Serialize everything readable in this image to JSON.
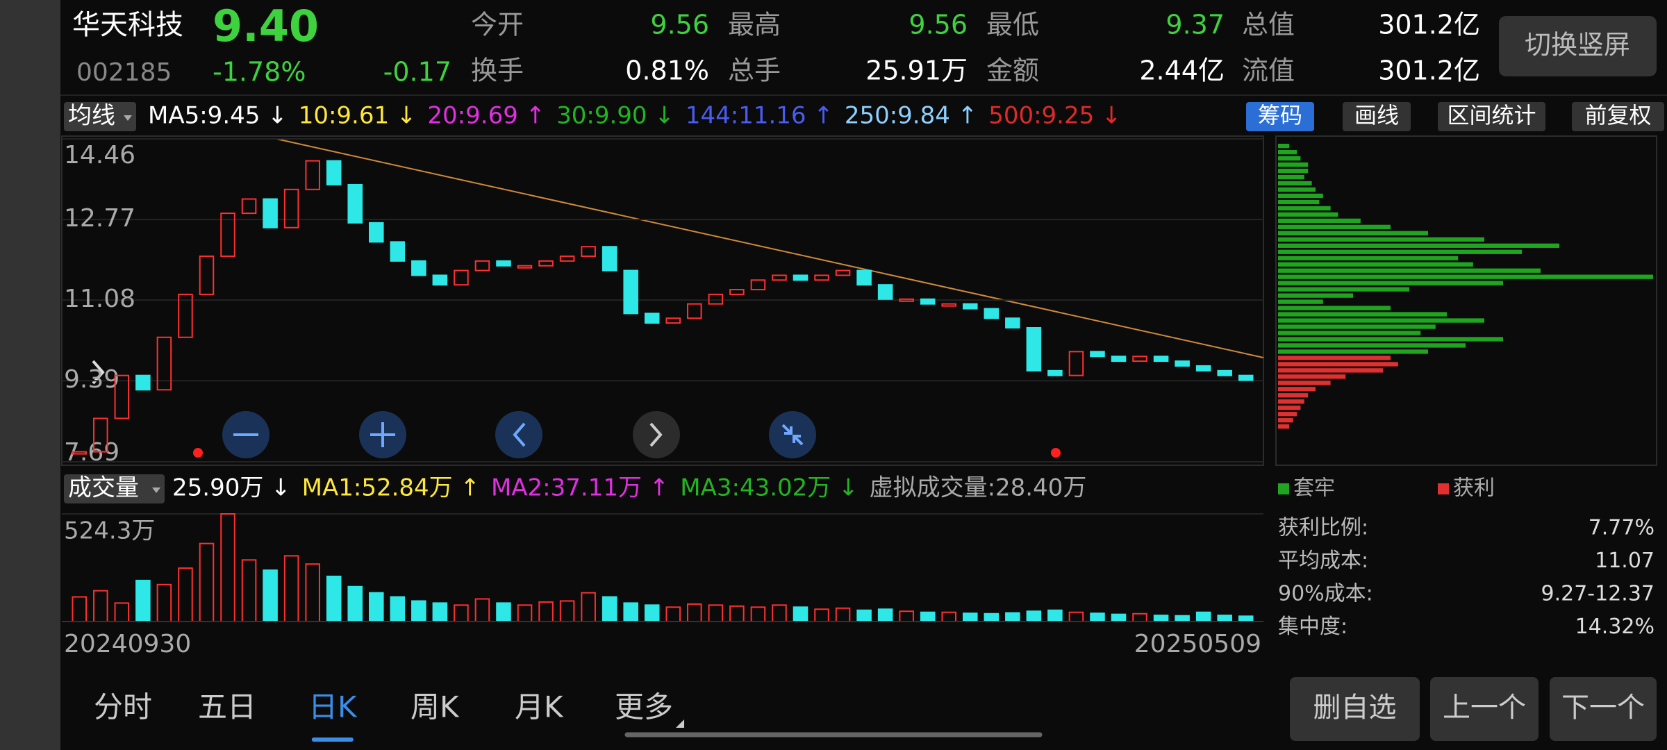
{
  "header": {
    "name": "华天科技",
    "price": "9.40",
    "code": "002185",
    "change_pct": "-1.78%",
    "change": "-0.17",
    "stats": [
      {
        "label": "今开",
        "value": "9.56",
        "color": "#3fd23f"
      },
      {
        "label": "最高",
        "value": "9.56",
        "color": "#3fd23f"
      },
      {
        "label": "最低",
        "value": "9.37",
        "color": "#3fd23f"
      },
      {
        "label": "总值",
        "value": "301.2亿",
        "color": "#ffffff"
      },
      {
        "label": "换手",
        "value": "0.81%",
        "color": "#ffffff"
      },
      {
        "label": "总手",
        "value": "25.91万",
        "color": "#ffffff"
      },
      {
        "label": "金额",
        "value": "2.44亿",
        "color": "#ffffff"
      },
      {
        "label": "流值",
        "value": "301.2亿",
        "color": "#ffffff"
      }
    ],
    "toggle_button": "切换竖屏"
  },
  "ma_bar": {
    "selector": "均线",
    "items": [
      {
        "text": "MA5:9.45 ↓",
        "color": "#ffffff"
      },
      {
        "text": "10:9.61 ↓",
        "color": "#ffe83a"
      },
      {
        "text": "20:9.69 ↑",
        "color": "#e030e0"
      },
      {
        "text": "30:9.90 ↓",
        "color": "#22b522"
      },
      {
        "text": "144:11.16 ↑",
        "color": "#4a5cf0"
      },
      {
        "text": "250:9.84 ↑",
        "color": "#8fd0ff"
      },
      {
        "text": "500:9.25 ↓",
        "color": "#e02a2a"
      }
    ]
  },
  "tools": [
    "筹码",
    "画线",
    "区间统计",
    "前复权"
  ],
  "price_chart": {
    "ylim": [
      7.69,
      14.46
    ],
    "yticks": [
      14.46,
      12.77,
      11.08,
      9.39,
      7.69
    ],
    "up_color": "#ff3030",
    "down_color": "#2ee8e8",
    "close": [
      7.9,
      8.6,
      9.5,
      9.2,
      10.3,
      11.2,
      12.0,
      12.9,
      13.2,
      12.6,
      13.4,
      14.0,
      13.5,
      12.7,
      12.3,
      11.9,
      11.6,
      11.4,
      11.7,
      11.9,
      11.8,
      11.8,
      11.9,
      12.0,
      12.2,
      11.7,
      10.8,
      10.6,
      10.7,
      11.0,
      11.2,
      11.3,
      11.5,
      11.6,
      11.5,
      11.6,
      11.7,
      11.4,
      11.1,
      11.1,
      11.0,
      11.0,
      10.9,
      10.7,
      10.5,
      9.6,
      9.5,
      10.0,
      9.9,
      9.8,
      9.9,
      9.8,
      9.7,
      9.6,
      9.5,
      9.4
    ]
  },
  "volume_bar": {
    "selector": "成交量",
    "items": [
      {
        "text": "25.90万 ↓",
        "color": "#ffffff"
      },
      {
        "text": "MA1:52.84万 ↑",
        "color": "#ffe83a"
      },
      {
        "text": "MA2:37.11万 ↑",
        "color": "#e030e0"
      },
      {
        "text": "MA3:43.02万 ↓",
        "color": "#22b522"
      },
      {
        "text": "虚拟成交量:28.40万",
        "color": "#aaaaaa"
      }
    ]
  },
  "volume_chart": {
    "ylim": [
      0,
      524.3
    ],
    "yticks": [
      {
        "value": 524.3,
        "label": "524.3万"
      }
    ],
    "values": [
      120,
      150,
      90,
      200,
      180,
      260,
      380,
      524.3,
      300,
      250,
      320,
      280,
      220,
      170,
      140,
      120,
      100,
      90,
      80,
      110,
      90,
      80,
      95,
      100,
      140,
      120,
      90,
      80,
      70,
      85,
      80,
      75,
      70,
      80,
      70,
      60,
      65,
      55,
      60,
      50,
      45,
      45,
      40,
      38,
      42,
      50,
      55,
      45,
      40,
      35,
      38,
      30,
      28,
      45,
      30,
      25.9
    ],
    "start_date": "20240930",
    "end_date": "20250509"
  },
  "chips": {
    "xlim": [
      0,
      100
    ],
    "legend": [
      {
        "label": "套牢",
        "color": "#1fa51f"
      },
      {
        "label": "获利",
        "color": "#e03030"
      }
    ],
    "trapped": [
      3,
      5,
      6,
      8,
      8,
      7,
      9,
      10,
      12,
      11,
      14,
      16,
      22,
      30,
      40,
      55,
      75,
      65,
      48,
      52,
      70,
      100,
      60,
      35,
      20,
      12,
      30,
      45,
      55,
      42,
      38,
      60,
      50,
      40
    ],
    "profit": [
      30,
      32,
      28,
      18,
      14,
      10,
      8,
      7,
      6,
      5,
      4,
      3
    ],
    "stats": [
      {
        "label": "获利比例:",
        "value": "7.77%"
      },
      {
        "label": "平均成本:",
        "value": "11.07"
      },
      {
        "label": "90%成本:",
        "value": "9.27-12.37"
      },
      {
        "label": "集中度:",
        "value": "14.32%"
      }
    ]
  },
  "tabs": [
    "分时",
    "五日",
    "日K",
    "周K",
    "月K",
    "更多"
  ],
  "active_tab": 2,
  "buttons": [
    "删自选",
    "上一个",
    "下一个"
  ]
}
